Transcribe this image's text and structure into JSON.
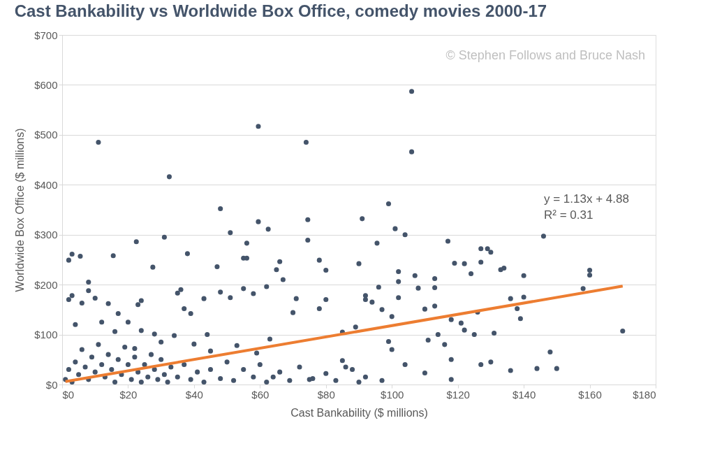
{
  "chart_data": {
    "type": "scatter",
    "title": "Cast Bankability vs Worldwide Box Office, comedy movies 2000-17",
    "xlabel": "Cast Bankability ($ millions)",
    "ylabel": "Worldwide Box Office ($ millions)",
    "xlim": [
      0,
      180
    ],
    "ylim": [
      0,
      700
    ],
    "xticks": [
      {
        "value": 0,
        "label": "$0"
      },
      {
        "value": 20,
        "label": "$20"
      },
      {
        "value": 40,
        "label": "$40"
      },
      {
        "value": 60,
        "label": "$60"
      },
      {
        "value": 80,
        "label": "$80"
      },
      {
        "value": 100,
        "label": "$100"
      },
      {
        "value": 120,
        "label": "$120"
      },
      {
        "value": 140,
        "label": "$140"
      },
      {
        "value": 160,
        "label": "$160"
      },
      {
        "value": 180,
        "label": "$180"
      }
    ],
    "yticks": [
      {
        "value": 0,
        "label": "$0"
      },
      {
        "value": 100,
        "label": "$100"
      },
      {
        "value": 200,
        "label": "$200"
      },
      {
        "value": 300,
        "label": "$300"
      },
      {
        "value": 400,
        "label": "$400"
      },
      {
        "value": 500,
        "label": "$500"
      },
      {
        "value": 600,
        "label": "$600"
      },
      {
        "value": 700,
        "label": "$700"
      }
    ],
    "grid": "y",
    "marker": "circle",
    "annotations": [
      "© Stephen Follows and Bruce Nash",
      "y = 1.13x + 4.88",
      "R² = 0.31"
    ],
    "series": [
      {
        "color": "#44546a",
        "x": [
          11,
          59.5,
          74,
          106,
          106,
          32.5,
          48,
          99,
          91,
          74.5,
          59.5,
          62.5,
          101,
          104,
          51,
          31,
          146,
          22.5,
          56,
          95.5,
          117,
          74.5,
          129,
          127,
          130,
          38,
          3,
          2,
          5.5,
          15.5,
          27.5,
          127,
          119,
          55,
          56,
          47,
          66,
          78,
          134,
          133,
          122,
          102,
          102,
          80,
          90,
          107,
          113,
          113,
          124,
          140,
          160,
          160,
          158,
          136,
          140,
          138,
          139,
          148,
          150,
          136,
          144,
          170,
          126,
          131,
          108,
          110,
          113,
          121,
          118,
          111,
          122,
          125,
          116,
          118,
          127,
          118,
          114,
          102,
          96,
          94,
          92,
          92,
          97,
          100,
          99,
          100,
          89,
          85,
          78,
          80,
          70,
          71,
          65,
          67,
          62,
          58,
          55,
          48,
          51,
          43,
          39,
          36,
          35,
          37,
          44,
          40,
          28,
          24,
          22,
          20,
          17,
          12,
          10,
          8,
          8,
          6,
          3,
          2,
          4,
          14,
          16,
          23,
          24,
          30,
          34,
          45,
          53,
          59,
          63,
          85,
          88,
          90,
          75,
          64,
          97,
          104,
          110,
          130,
          1,
          2,
          3,
          4,
          5,
          6,
          7,
          8,
          9,
          10,
          11,
          12,
          13,
          14,
          15,
          16,
          17,
          18,
          19,
          20,
          21,
          22,
          23,
          24,
          25,
          26,
          27,
          28,
          29,
          30,
          31,
          32,
          33,
          35,
          37,
          39,
          41,
          43,
          45,
          48,
          50,
          52,
          55,
          58,
          60,
          62,
          66,
          69,
          72,
          76,
          80,
          83,
          86,
          92
        ],
        "values": [
          485,
          517,
          485,
          587,
          466,
          416,
          352,
          362,
          332,
          330,
          326,
          311,
          312,
          300,
          304,
          295,
          297,
          286,
          283,
          283,
          287,
          289,
          272,
          272,
          265,
          262,
          261,
          249,
          257,
          258,
          235,
          245,
          243,
          253,
          253,
          236,
          246,
          249,
          233,
          230,
          242,
          226,
          206,
          229,
          242,
          218,
          212,
          194,
          222,
          218,
          229,
          219,
          192,
          172,
          175,
          152,
          132,
          65,
          32,
          28,
          32,
          107,
          145,
          103,
          193,
          151,
          157,
          123,
          130,
          89,
          109,
          100,
          80,
          50,
          40,
          10,
          100,
          174,
          195,
          165,
          178,
          170,
          150,
          136,
          86,
          70,
          115,
          105,
          152,
          170,
          144,
          172,
          230,
          210,
          196,
          182,
          192,
          185,
          174,
          172,
          142,
          190,
          183,
          152,
          100,
          81,
          101,
          108,
          72,
          125,
          142,
          125,
          173,
          188,
          205,
          163,
          178,
          170,
          120,
          162,
          106,
          160,
          168,
          85,
          98,
          67,
          78,
          63,
          91,
          48,
          30,
          5,
          10,
          15,
          8,
          40,
          23,
          45,
          10,
          30,
          5,
          45,
          20,
          70,
          35,
          10,
          55,
          25,
          80,
          40,
          15,
          60,
          30,
          5,
          50,
          20,
          75,
          40,
          10,
          55,
          25,
          5,
          40,
          15,
          60,
          30,
          10,
          50,
          20,
          5,
          35,
          15,
          40,
          10,
          25,
          5,
          30,
          12,
          45,
          8,
          30,
          15,
          40,
          5,
          25,
          8,
          35,
          12,
          22,
          8,
          35,
          15
        ]
      },
      {
        "type": "line",
        "marker": "none",
        "color": "#ed7d31",
        "x": [
          1,
          170
        ],
        "values": [
          6,
          197
        ]
      }
    ]
  }
}
